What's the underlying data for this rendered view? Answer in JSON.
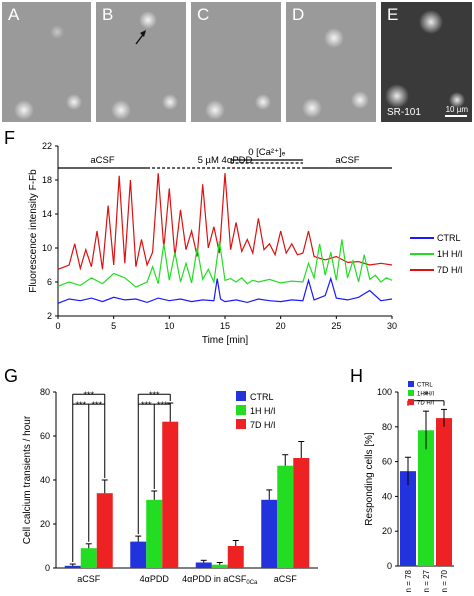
{
  "micro_panels": [
    {
      "label": "A"
    },
    {
      "label": "B"
    },
    {
      "label": "C"
    },
    {
      "label": "D"
    },
    {
      "label": "E",
      "stain_label": "SR-101",
      "scale_label": "10 µm"
    }
  ],
  "panel_f": {
    "letter": "F",
    "conditions": [
      {
        "label": "aCSF",
        "style": "solid",
        "x_start": 0,
        "x_end": 8
      },
      {
        "label": "5 µM 4αPDD",
        "style": "dashed",
        "x_start": 8,
        "x_end": 22
      },
      {
        "label": "0 [Ca²⁺]ₑ",
        "style": "solid",
        "x_start": 15.5,
        "x_end": 22
      },
      {
        "label": "aCSF",
        "style": "solid",
        "x_start": 22,
        "x_end": 30
      }
    ]
  },
  "panel_g": {
    "letter": "G"
  },
  "panel_h": {
    "letter": "H",
    "significance": "*"
  },
  "chart_data": [
    {
      "type": "line",
      "xlabel": "Time [min]",
      "ylabel": "Fluorescence intensity F-Fb",
      "xlim": [
        0,
        30
      ],
      "ylim": [
        2,
        22
      ],
      "xticks": [
        "0",
        "5",
        "10",
        "15",
        "20",
        "25",
        "30"
      ],
      "yticks": [
        "2",
        "6",
        "10",
        "14",
        "18",
        "22"
      ],
      "legend_position": "right",
      "series": [
        {
          "name": "CTRL",
          "color": "#1a1aff",
          "x": [
            0,
            1,
            2,
            3,
            4,
            5,
            6,
            7,
            8,
            9,
            10,
            11,
            12,
            13,
            14,
            14.3,
            14.6,
            15,
            16,
            17,
            18,
            19,
            20,
            21,
            22,
            22.5,
            23,
            24,
            24.5,
            25,
            26,
            27,
            28,
            29,
            30
          ],
          "y": [
            3.5,
            4,
            3.8,
            4.1,
            3.7,
            4.2,
            3.9,
            4,
            3.6,
            4.1,
            3.8,
            4,
            3.7,
            3.9,
            3.8,
            6.4,
            4,
            3.7,
            3.9,
            3.6,
            4,
            3.8,
            3.7,
            3.9,
            3.8,
            6.2,
            3.9,
            4.4,
            6.4,
            4.1,
            3.9,
            4.2,
            5,
            3.8,
            4
          ]
        },
        {
          "name": "1H H/I",
          "color": "#22dd22",
          "x": [
            0,
            1,
            2,
            3,
            4,
            5,
            6,
            7,
            8,
            8.5,
            9,
            9.5,
            10,
            10.5,
            11,
            11.5,
            12,
            12.5,
            13,
            13.5,
            14,
            14.5,
            15,
            15.5,
            16,
            16.5,
            17,
            17.5,
            18,
            19,
            20,
            21,
            22,
            22.5,
            23,
            23.5,
            24,
            24.5,
            25,
            25.5,
            26,
            26.5,
            27,
            27.5,
            28,
            28.5,
            29,
            29.5,
            30
          ],
          "y": [
            5.5,
            6,
            5.6,
            6.5,
            5.8,
            7,
            6.5,
            5.4,
            6,
            7.8,
            5.8,
            10.5,
            6.2,
            9.5,
            6,
            8.2,
            5.9,
            10,
            6.3,
            7.5,
            6,
            10.8,
            6.2,
            6.4,
            6,
            6.5,
            5.8,
            6.2,
            6,
            6.3,
            5.9,
            6.1,
            6,
            8.2,
            6.5,
            10.5,
            6.8,
            9.5,
            6.2,
            11,
            6.5,
            8.5,
            6,
            9.2,
            6.3,
            6.8,
            6,
            6.5,
            6.2
          ]
        },
        {
          "name": "7D H/I",
          "color": "#dd1111",
          "x": [
            0,
            1,
            1.5,
            2,
            2.5,
            3,
            3.5,
            4,
            4.5,
            5,
            5.5,
            6,
            6.5,
            7,
            7.5,
            8,
            8.5,
            9,
            9.5,
            10,
            10.5,
            11,
            11.5,
            12,
            12.5,
            13,
            13.5,
            14,
            14.5,
            15,
            15.5,
            16,
            16.5,
            17,
            17.5,
            18,
            18.5,
            19,
            19.5,
            20,
            20.5,
            21,
            21.5,
            22,
            22.5,
            23,
            24,
            25,
            26,
            27,
            28,
            29,
            30
          ],
          "y": [
            7.5,
            8,
            10.5,
            7.6,
            9.8,
            7.8,
            12,
            7.5,
            15,
            8,
            18.5,
            8.2,
            18,
            7.8,
            11,
            8,
            9.5,
            18.8,
            10,
            17,
            9,
            14.5,
            9.8,
            12,
            9,
            17.5,
            10,
            12.5,
            9.4,
            18.8,
            9.8,
            13,
            9.6,
            11,
            9.4,
            13.5,
            9.8,
            10.5,
            9.2,
            12,
            9.4,
            10.5,
            9.2,
            9.4,
            12,
            9,
            8.6,
            9,
            8.3,
            8.4,
            8,
            8.2,
            8
          ]
        }
      ]
    },
    {
      "type": "bar",
      "ylabel": "Cell calcium transients / hour",
      "ylim": [
        0,
        80
      ],
      "yticks": [
        "0",
        "20",
        "40",
        "60",
        "80"
      ],
      "categories": [
        "aCSF",
        "4αPDD",
        "4αPDD in aCSF",
        "aCSF"
      ],
      "category_suffix": [
        "",
        "",
        "0Ca",
        ""
      ],
      "legend_position": "top-right",
      "significance": [
        "***",
        "***",
        "***",
        "***",
        "***",
        "***"
      ],
      "series": [
        {
          "name": "CTRL",
          "color": "#2233dd",
          "values": [
            1,
            12,
            2.5,
            31
          ],
          "errors": [
            0.8,
            2.5,
            1,
            4.5
          ]
        },
        {
          "name": "1H H/I",
          "color": "#22dd22",
          "values": [
            9,
            31,
            1.5,
            46.5
          ],
          "errors": [
            2,
            4,
            1,
            5
          ]
        },
        {
          "name": "7D H/I",
          "color": "#ee2222",
          "values": [
            34,
            66.5,
            10,
            50
          ],
          "errors": [
            6,
            8.5,
            2.5,
            7.5
          ]
        }
      ]
    },
    {
      "type": "bar",
      "ylabel": "Responding cells [%]",
      "ylim": [
        0,
        100
      ],
      "yticks": [
        "0",
        "20",
        "40",
        "60",
        "80",
        "100"
      ],
      "categories": [
        "n = 78",
        "n = 27",
        "n = 70"
      ],
      "legend_position": "top-left",
      "series": [
        {
          "name": "CTRL",
          "color": "#2233dd",
          "value": 54.5,
          "error": 8
        },
        {
          "name": "1H H/I",
          "color": "#22dd22",
          "value": 78,
          "error": 11
        },
        {
          "name": "7D H/I",
          "color": "#ee2222",
          "value": 85,
          "error": 5
        }
      ]
    }
  ]
}
